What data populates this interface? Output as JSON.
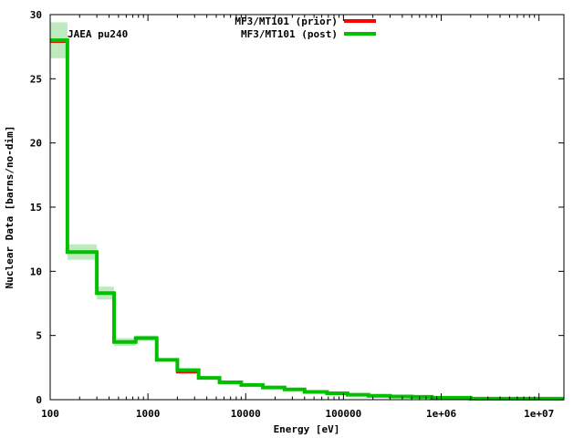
{
  "chart_data": {
    "type": "line",
    "step": true,
    "annotation": "JAEA pu240",
    "xlabel": "Energy [eV]",
    "ylabel": "Nuclear Data [barns/no-dim]",
    "xscale": "log",
    "xlim": [
      100,
      18000000
    ],
    "ylim": [
      0,
      30
    ],
    "x_ticks": [
      {
        "value": 100,
        "label": "100"
      },
      {
        "value": 1000,
        "label": "1000"
      },
      {
        "value": 10000,
        "label": "10000"
      },
      {
        "value": 100000,
        "label": "100000"
      },
      {
        "value": 1000000,
        "label": "1e+06"
      },
      {
        "value": 10000000,
        "label": "1e+07"
      }
    ],
    "y_ticks": [
      0,
      5,
      10,
      15,
      20,
      25,
      30
    ],
    "legend_position": "top-center",
    "bin_edges": [
      100,
      150,
      300,
      450,
      750,
      1230,
      2000,
      3300,
      5400,
      9000,
      15000,
      25000,
      40000,
      68000,
      110000,
      180000,
      300000,
      500000,
      800000,
      2000000,
      18000000
    ],
    "series": [
      {
        "name": "MF3/MT101 (prior)",
        "color": "#ff0000",
        "values": [
          27.9,
          11.5,
          8.3,
          4.5,
          4.8,
          3.1,
          2.15,
          1.7,
          1.35,
          1.15,
          0.95,
          0.8,
          0.6,
          0.5,
          0.38,
          0.3,
          0.25,
          0.22,
          0.15,
          0.08
        ]
      },
      {
        "name": "MF3/MT101 (post)",
        "color": "#00c000",
        "values": [
          28.0,
          11.5,
          8.3,
          4.5,
          4.8,
          3.1,
          2.3,
          1.7,
          1.35,
          1.15,
          0.95,
          0.8,
          0.6,
          0.5,
          0.38,
          0.3,
          0.25,
          0.22,
          0.15,
          0.08
        ]
      }
    ],
    "uncertainty_band": {
      "color": "#bfeabf",
      "lower": [
        26.6,
        10.9,
        7.8,
        4.2,
        4.6,
        3.0,
        2.2,
        1.65,
        1.3,
        1.1,
        0.9,
        0.75,
        0.55,
        0.45,
        0.35,
        0.27,
        0.22,
        0.2,
        0.13,
        0.06
      ],
      "upper": [
        29.4,
        12.1,
        8.8,
        4.8,
        5.0,
        3.2,
        2.4,
        1.75,
        1.4,
        1.2,
        1.0,
        0.85,
        0.65,
        0.55,
        0.41,
        0.33,
        0.28,
        0.24,
        0.17,
        0.1
      ]
    }
  }
}
